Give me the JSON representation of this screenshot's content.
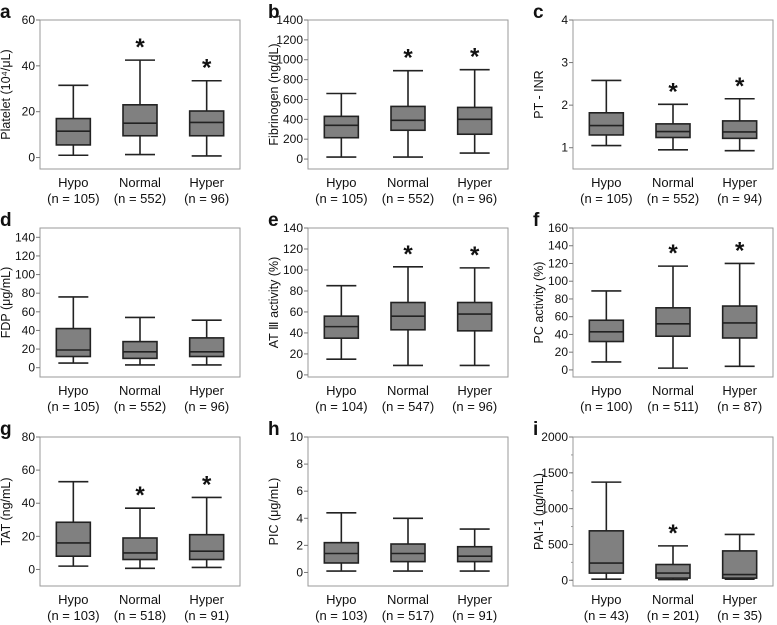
{
  "chart_data": [
    {
      "panel": "a",
      "type": "box",
      "ylabel": "Platelet (10⁴/μL)",
      "ylim": [
        -5,
        60
      ],
      "yticks": [
        0,
        20,
        40,
        60
      ],
      "categories": [
        "Hypo",
        "Normal",
        "Hyper"
      ],
      "n_labels": [
        "(n = 105)",
        "(n = 552)",
        "(n = 96)"
      ],
      "boxes": [
        {
          "min": 1,
          "q1": 5.5,
          "median": 11.5,
          "q3": 17,
          "max": 31.5
        },
        {
          "min": 1.3,
          "q1": 9.5,
          "median": 15,
          "q3": 23,
          "max": 42.5
        },
        {
          "min": 0.7,
          "q1": 9.5,
          "median": 15.3,
          "q3": 20.3,
          "max": 33.5
        }
      ],
      "significant": [
        false,
        true,
        true
      ]
    },
    {
      "panel": "b",
      "type": "box",
      "ylabel": "Fibrinogen (ng/dL)",
      "ylim": [
        -100,
        1400
      ],
      "yticks": [
        0,
        200,
        400,
        600,
        800,
        1000,
        1200,
        1400
      ],
      "categories": [
        "Hypo",
        "Normal",
        "Hyper"
      ],
      "n_labels": [
        "(n = 105)",
        "(n = 552)",
        "(n = 96)"
      ],
      "boxes": [
        {
          "min": 20,
          "q1": 215,
          "median": 340,
          "q3": 430,
          "max": 660
        },
        {
          "min": 20,
          "q1": 290,
          "median": 390,
          "q3": 530,
          "max": 890
        },
        {
          "min": 60,
          "q1": 250,
          "median": 400,
          "q3": 520,
          "max": 900
        }
      ],
      "significant": [
        false,
        true,
        true
      ]
    },
    {
      "panel": "c",
      "type": "box",
      "ylabel": "PT - INR",
      "ylim": [
        0.5,
        4
      ],
      "yticks": [
        1,
        2,
        3,
        4
      ],
      "categories": [
        "Hypo",
        "Normal",
        "Hyper"
      ],
      "n_labels": [
        "(n = 105)",
        "(n = 552)",
        "(n = 94)"
      ],
      "boxes": [
        {
          "min": 1.05,
          "q1": 1.3,
          "median": 1.52,
          "q3": 1.82,
          "max": 2.58
        },
        {
          "min": 0.95,
          "q1": 1.24,
          "median": 1.38,
          "q3": 1.56,
          "max": 2.02
        },
        {
          "min": 0.93,
          "q1": 1.22,
          "median": 1.37,
          "q3": 1.63,
          "max": 2.15
        }
      ],
      "significant": [
        false,
        true,
        true
      ]
    },
    {
      "panel": "d",
      "type": "box",
      "ylabel": "FDP (μg/mL)",
      "ylim": [
        -10,
        150
      ],
      "yticks": [
        0,
        20,
        40,
        60,
        80,
        100,
        120,
        140
      ],
      "categories": [
        "Hypo",
        "Normal",
        "Hyper"
      ],
      "n_labels": [
        "(n = 105)",
        "(n = 552)",
        "(n = 96)"
      ],
      "boxes": [
        {
          "min": 5,
          "q1": 12,
          "median": 19,
          "q3": 42,
          "max": 76
        },
        {
          "min": 3,
          "q1": 10,
          "median": 17,
          "q3": 28,
          "max": 54
        },
        {
          "min": 3,
          "q1": 12,
          "median": 17,
          "q3": 32,
          "max": 51
        }
      ],
      "significant": [
        false,
        false,
        false
      ]
    },
    {
      "panel": "e",
      "type": "box",
      "ylabel": "AT Ⅲ activity (%)",
      "ylim": [
        -2,
        140
      ],
      "yticks": [
        0,
        20,
        40,
        60,
        80,
        100,
        120,
        140
      ],
      "categories": [
        "Hypo",
        "Normal",
        "Hyper"
      ],
      "n_labels": [
        "(n = 104)",
        "(n = 547)",
        "(n = 96)"
      ],
      "boxes": [
        {
          "min": 15,
          "q1": 35,
          "median": 46,
          "q3": 56,
          "max": 85
        },
        {
          "min": 9,
          "q1": 43,
          "median": 56,
          "q3": 69,
          "max": 103
        },
        {
          "min": 9,
          "q1": 42,
          "median": 58,
          "q3": 69,
          "max": 102
        }
      ],
      "significant": [
        false,
        true,
        true
      ]
    },
    {
      "panel": "f",
      "type": "box",
      "ylabel": "PC activity (%)",
      "ylim": [
        -8,
        160
      ],
      "yticks": [
        0,
        20,
        40,
        60,
        80,
        100,
        120,
        140,
        160
      ],
      "categories": [
        "Hypo",
        "Normal",
        "Hyper"
      ],
      "n_labels": [
        "(n = 100)",
        "(n = 511)",
        "(n = 87)"
      ],
      "boxes": [
        {
          "min": 9,
          "q1": 32,
          "median": 43,
          "q3": 56,
          "max": 89
        },
        {
          "min": 2,
          "q1": 38,
          "median": 52,
          "q3": 70,
          "max": 117
        },
        {
          "min": 4,
          "q1": 36,
          "median": 53,
          "q3": 72,
          "max": 120
        }
      ],
      "significant": [
        false,
        true,
        true
      ]
    },
    {
      "panel": "g",
      "type": "box",
      "ylabel": "TAT (ng/mL)",
      "ylim": [
        -10,
        80
      ],
      "yticks": [
        0,
        20,
        40,
        60,
        80
      ],
      "categories": [
        "Hypo",
        "Normal",
        "Hyper"
      ],
      "n_labels": [
        "(n = 103)",
        "(n = 518)",
        "(n = 91)"
      ],
      "boxes": [
        {
          "min": 2,
          "q1": 8,
          "median": 16,
          "q3": 28.5,
          "max": 53
        },
        {
          "min": 0.7,
          "q1": 6,
          "median": 10,
          "q3": 19,
          "max": 37
        },
        {
          "min": 1.2,
          "q1": 6,
          "median": 11,
          "q3": 21,
          "max": 43.5
        }
      ],
      "significant": [
        false,
        true,
        true
      ]
    },
    {
      "panel": "h",
      "type": "box",
      "ylabel": "PIC (μg/mL)",
      "ylim": [
        -1,
        10
      ],
      "yticks": [
        0,
        2,
        4,
        6,
        8,
        10
      ],
      "categories": [
        "Hypo",
        "Normal",
        "Hyper"
      ],
      "n_labels": [
        "(n = 103)",
        "(n = 517)",
        "(n = 91)"
      ],
      "boxes": [
        {
          "min": 0.1,
          "q1": 0.7,
          "median": 1.4,
          "q3": 2.2,
          "max": 4.4
        },
        {
          "min": 0.1,
          "q1": 0.8,
          "median": 1.4,
          "q3": 2.1,
          "max": 4.0
        },
        {
          "min": 0.1,
          "q1": 0.8,
          "median": 1.2,
          "q3": 1.9,
          "max": 3.2
        }
      ],
      "significant": [
        false,
        false,
        false
      ]
    },
    {
      "panel": "i",
      "type": "box",
      "ylabel": "PAI-1 (ng/mL)",
      "ylim": [
        -80,
        2000
      ],
      "yticks": [
        0,
        500,
        1000,
        1500,
        2000
      ],
      "minor_tick_step": 250,
      "categories": [
        "Hypo",
        "Normal",
        "Hyper"
      ],
      "n_labels": [
        "(n = 43)",
        "(n = 201)",
        "(n = 35)"
      ],
      "boxes": [
        {
          "min": 15,
          "q1": 100,
          "median": 240,
          "q3": 690,
          "max": 1370
        },
        {
          "min": 10,
          "q1": 30,
          "median": 100,
          "q3": 220,
          "max": 480
        },
        {
          "min": 15,
          "q1": 30,
          "median": 80,
          "q3": 410,
          "max": 640
        }
      ],
      "significant": [
        false,
        true,
        false
      ]
    }
  ],
  "significance_marker": "*",
  "colors": {
    "box_fill": "#808080",
    "box_stroke": "#222222",
    "frame": "#9a9a9a"
  }
}
